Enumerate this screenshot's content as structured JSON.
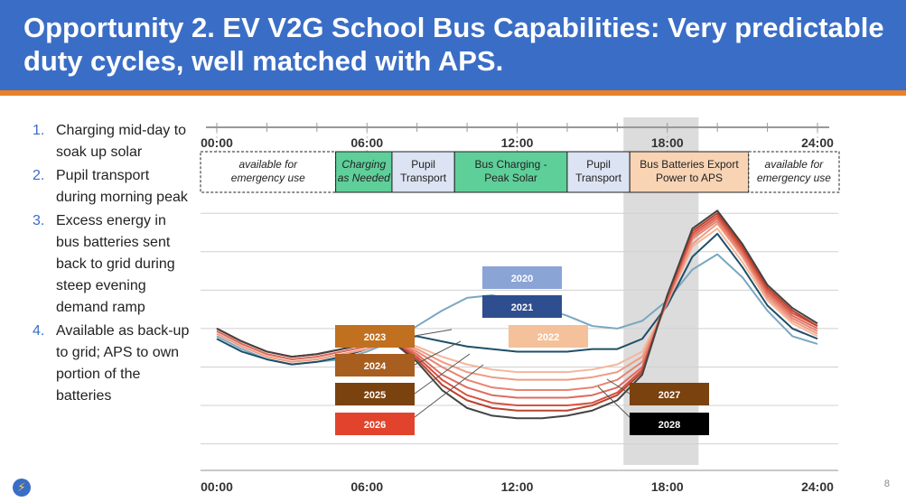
{
  "slide": {
    "title": "Opportunity 2. EV V2G School Bus Capabilities: Very predictable duty cycles, well matched with APS.",
    "page_number": "8"
  },
  "bullets": [
    {
      "num": "1.",
      "text": "Charging mid-day to soak up solar"
    },
    {
      "num": "2.",
      "text": "Pupil transport during morning peak"
    },
    {
      "num": "3.",
      "text": "Excess energy in bus batteries sent back to grid during steep evening demand ramp"
    },
    {
      "num": "4.",
      "text": "Available as back-up to grid; APS to own portion of the batteries"
    }
  ],
  "timeline": {
    "top_ticks": [
      "00:00",
      "06:00",
      "12:00",
      "18:00",
      "24:00"
    ],
    "blocks": [
      {
        "label_lines": [
          "available for",
          "emergency use"
        ],
        "start": 0,
        "end": 4.75,
        "fill": "#ffffff",
        "italic": true,
        "dashed": true
      },
      {
        "label_lines": [
          "Charging",
          "as Needed"
        ],
        "start": 4.75,
        "end": 7.0,
        "fill": "#5fcf9a",
        "italic": true,
        "dashed": false
      },
      {
        "label_lines": [
          "Pupil",
          "Transport"
        ],
        "start": 7.0,
        "end": 9.5,
        "fill": "#dce3f3",
        "italic": false,
        "dashed": false
      },
      {
        "label_lines": [
          "Bus Charging -",
          "Peak Solar"
        ],
        "start": 9.5,
        "end": 14.0,
        "fill": "#5fcf9a",
        "italic": false,
        "dashed": false
      },
      {
        "label_lines": [
          "Pupil",
          "Transport"
        ],
        "start": 14.0,
        "end": 16.5,
        "fill": "#dce3f3",
        "italic": false,
        "dashed": false
      },
      {
        "label_lines": [
          "Bus Batteries Export",
          "Power to APS"
        ],
        "start": 16.5,
        "end": 21.25,
        "fill": "#f8d4b4",
        "italic": false,
        "dashed": false
      },
      {
        "label_lines": [
          "available for",
          "emergency use"
        ],
        "start": 21.25,
        "end": 24,
        "fill": "#ffffff",
        "italic": true,
        "dashed": true
      }
    ]
  },
  "chart_data": {
    "type": "line",
    "x_ticks": [
      "00:00",
      "06:00",
      "12:00",
      "18:00",
      "24:00"
    ],
    "shaded_region": {
      "start": 16.25,
      "end": 19.25
    },
    "hours": [
      0,
      1,
      2,
      3,
      4,
      5,
      6,
      7,
      8,
      9,
      10,
      11,
      12,
      13,
      14,
      15,
      16,
      17,
      18,
      19,
      20,
      21,
      22,
      23,
      24
    ],
    "series": [
      {
        "name": "2020",
        "color": "#7aa7c1",
        "label_fill": "#8aa4d6",
        "label_text": "#ffffff",
        "values": [
          5.2,
          4.7,
          4.3,
          4.1,
          4.2,
          4.3,
          4.6,
          5.0,
          5.6,
          6.2,
          6.7,
          6.8,
          6.6,
          6.3,
          6.0,
          5.6,
          5.5,
          5.8,
          6.6,
          7.8,
          8.4,
          7.5,
          6.2,
          5.2,
          4.9
        ]
      },
      {
        "name": "2021",
        "color": "#1f4e69",
        "label_fill": "#2f4e8f",
        "label_text": "#ffffff",
        "values": [
          5.1,
          4.6,
          4.3,
          4.1,
          4.2,
          4.4,
          4.7,
          5.1,
          5.2,
          5.0,
          4.8,
          4.7,
          4.6,
          4.6,
          4.6,
          4.7,
          4.7,
          5.1,
          6.4,
          8.3,
          9.2,
          7.9,
          6.4,
          5.5,
          5.1
        ]
      },
      {
        "name": "2022",
        "color": "#f4b79b",
        "label_fill": "#f4c19a",
        "label_text": "#ffffff",
        "values": [
          5.3,
          4.8,
          4.4,
          4.2,
          4.3,
          4.5,
          4.7,
          5.0,
          4.8,
          4.4,
          4.1,
          3.9,
          3.8,
          3.8,
          3.8,
          3.9,
          4.1,
          4.6,
          6.5,
          8.7,
          9.4,
          8.1,
          6.6,
          5.7,
          5.2
        ]
      },
      {
        "name": "2023",
        "color": "#ee9c82",
        "label_fill": "#c0701f",
        "label_text": "#ffffff",
        "values": [
          5.3,
          4.8,
          4.4,
          4.2,
          4.3,
          4.5,
          4.7,
          5.0,
          4.7,
          4.2,
          3.8,
          3.6,
          3.5,
          3.5,
          3.5,
          3.6,
          3.8,
          4.4,
          6.5,
          8.8,
          9.6,
          8.3,
          6.7,
          5.8,
          5.3
        ]
      },
      {
        "name": "2024",
        "color": "#e78470",
        "label_fill": "#a85e1f",
        "label_text": "#ffffff",
        "values": [
          5.4,
          4.9,
          4.5,
          4.3,
          4.4,
          4.6,
          4.8,
          5.0,
          4.6,
          4.0,
          3.5,
          3.2,
          3.1,
          3.1,
          3.1,
          3.2,
          3.5,
          4.2,
          6.6,
          9.0,
          9.7,
          8.4,
          6.8,
          5.9,
          5.4
        ]
      },
      {
        "name": "2025",
        "color": "#dd6c5e",
        "label_fill": "#7a420f",
        "label_text": "#ffffff",
        "values": [
          5.4,
          4.9,
          4.5,
          4.3,
          4.4,
          4.6,
          4.8,
          5.0,
          4.5,
          3.7,
          3.2,
          2.9,
          2.8,
          2.8,
          2.8,
          2.9,
          3.2,
          4.0,
          6.6,
          9.1,
          9.8,
          8.5,
          6.9,
          6.0,
          5.5
        ]
      },
      {
        "name": "2026",
        "color": "#d8503f",
        "label_fill": "#e2432c",
        "label_text": "#ffffff",
        "values": [
          5.5,
          5.0,
          4.6,
          4.4,
          4.5,
          4.7,
          4.9,
          5.0,
          4.4,
          3.5,
          2.9,
          2.6,
          2.5,
          2.5,
          2.5,
          2.6,
          3.0,
          3.9,
          6.7,
          9.2,
          9.9,
          8.6,
          7.0,
          6.1,
          5.6
        ]
      },
      {
        "name": "2027",
        "color": "#b8432e",
        "label_fill": "#7a420f",
        "label_text": "#ffffff",
        "values": [
          5.5,
          5.0,
          4.6,
          4.4,
          4.5,
          4.7,
          4.9,
          5.0,
          4.3,
          3.3,
          2.7,
          2.4,
          2.3,
          2.3,
          2.3,
          2.5,
          2.9,
          3.8,
          6.8,
          9.3,
          10.0,
          8.7,
          7.1,
          6.2,
          5.6
        ]
      },
      {
        "name": "2028",
        "color": "#444444",
        "label_fill": "#000000",
        "label_text": "#ffffff",
        "values": [
          5.5,
          5.0,
          4.6,
          4.4,
          4.5,
          4.7,
          4.9,
          5.0,
          4.2,
          3.1,
          2.4,
          2.1,
          2.0,
          2.0,
          2.1,
          2.3,
          2.7,
          3.7,
          6.8,
          9.4,
          10.1,
          8.8,
          7.2,
          6.3,
          5.7
        ]
      }
    ]
  }
}
